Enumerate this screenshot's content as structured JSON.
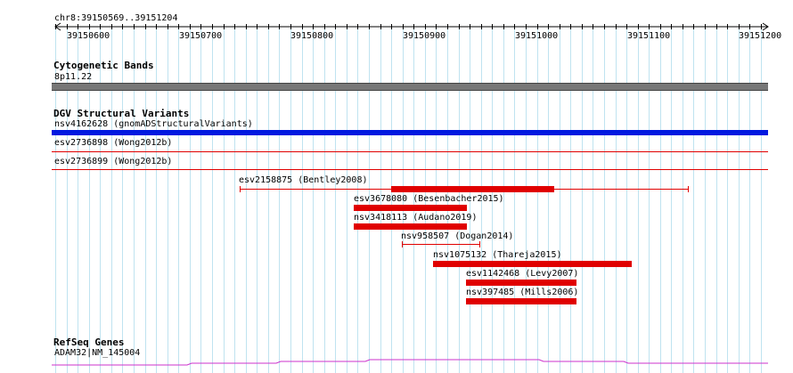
{
  "ruler": {
    "region": "chr8:39150569..39151204",
    "ticks": [
      "39150600",
      "39150700",
      "39150800",
      "39150900",
      "39151000",
      "39151100",
      "39151200"
    ]
  },
  "tracks": {
    "cytobands": {
      "title": "Cytogenetic Bands",
      "band": "8p11.22"
    },
    "dgv": {
      "title": "DGV Structural Variants",
      "variants": [
        {
          "label": "nsv4162628 (gnomADStructuralVariants)"
        },
        {
          "label": "esv2736898 (Wong2012b)"
        },
        {
          "label": "esv2736899 (Wong2012b)"
        },
        {
          "label": "esv2158875 (Bentley2008)"
        },
        {
          "label": "esv3678080 (Besenbacher2015)"
        },
        {
          "label": "nsv3418113 (Audano2019)"
        },
        {
          "label": "nsv958507 (Dogan2014)"
        },
        {
          "label": "nsv1075132 (Thareja2015)"
        },
        {
          "label": "esv1142468 (Levy2007)"
        },
        {
          "label": "nsv397485 (Mills2006)"
        }
      ]
    },
    "refseq": {
      "title": "RefSeq Genes",
      "gene": "ADAM32|NM_145004"
    }
  },
  "colors": {
    "grid": "#bfe3f0",
    "variant_loss": "#e00000",
    "variant_blue": "#0019e0",
    "cytoband": "#777777",
    "gene": "#cc33cc"
  }
}
